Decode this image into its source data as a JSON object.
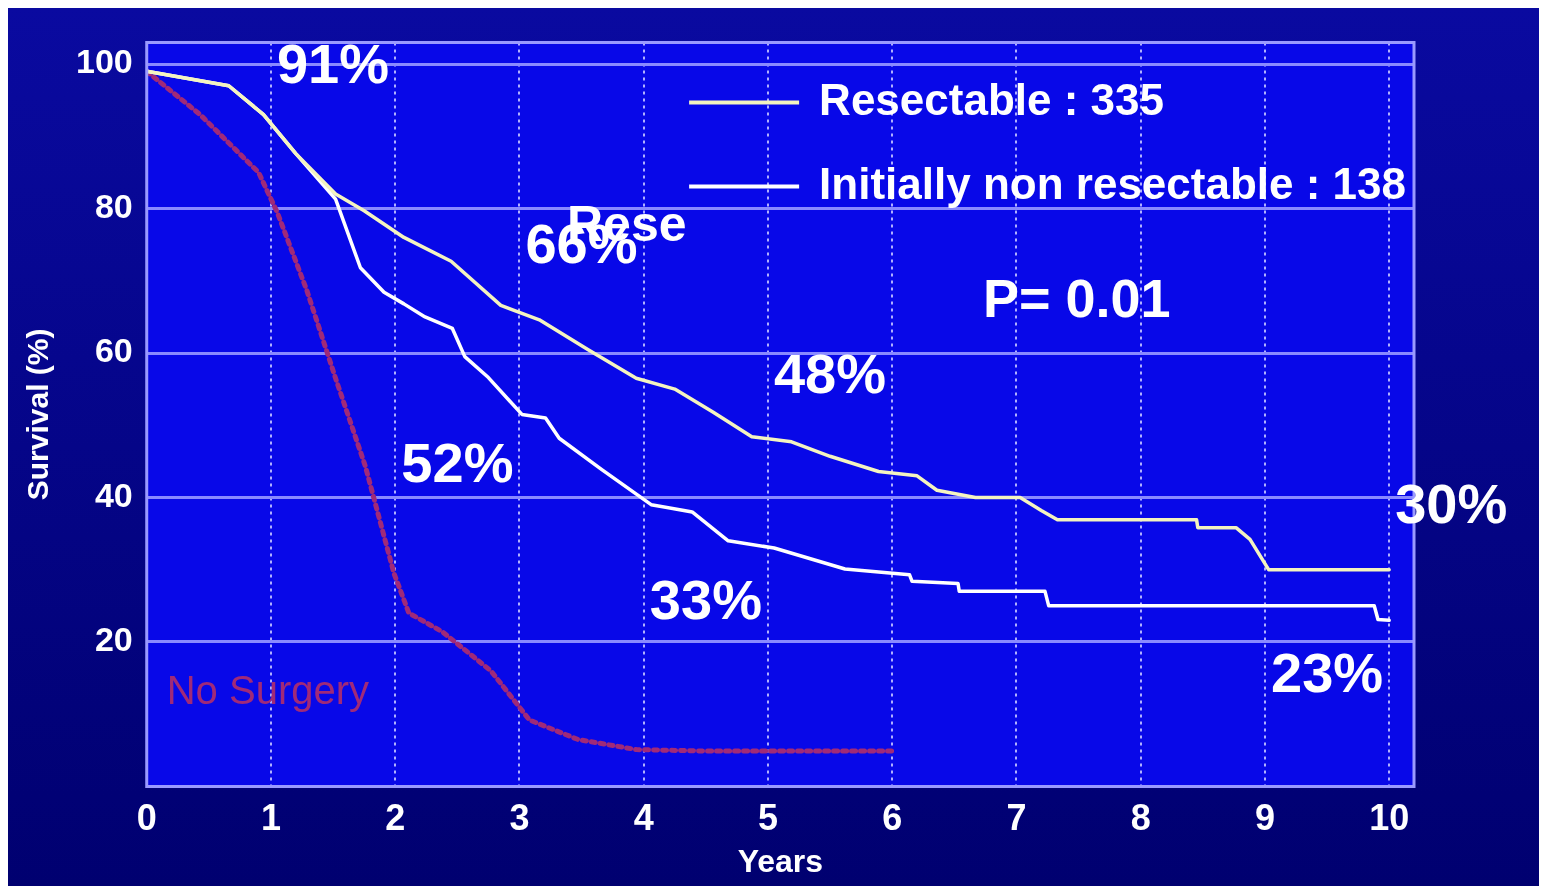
{
  "chart_data": {
    "type": "line",
    "xlabel": "Years",
    "ylabel": "Survival (%)",
    "xlim": [
      0,
      10.2
    ],
    "ylim": [
      0,
      103
    ],
    "xticks": [
      0,
      1,
      2,
      3,
      4,
      5,
      6,
      7,
      8,
      9,
      10
    ],
    "yticks": [
      20,
      40,
      60,
      80,
      100
    ],
    "grid": true,
    "legend": "top right",
    "marker": "none",
    "series": [
      {
        "name": "Resectable : 335",
        "color": "#f4f4c0",
        "line_style": "solid",
        "x": [
          0,
          0.66,
          0.94,
          1.2,
          1.52,
          1.75,
          2.07,
          2.45,
          2.85,
          3.16,
          3.55,
          3.94,
          4.25,
          4.56,
          4.87,
          5.19,
          5.5,
          5.89,
          6.2,
          6.36,
          6.67,
          7.03,
          7.2,
          7.33,
          8.45,
          8.46,
          8.77,
          8.88,
          9.03,
          10
        ],
        "values": [
          99,
          97,
          93,
          87.6,
          82,
          79.7,
          76,
          72.7,
          66.6,
          64.6,
          60.5,
          56.5,
          55,
          51.8,
          48.4,
          47.7,
          45.7,
          43.6,
          43,
          41,
          40,
          40,
          38.2,
          36.9,
          36.9,
          35.8,
          35.8,
          34.2,
          30,
          30
        ]
      },
      {
        "name": "Initially non resectable : 138",
        "color": "#ffffff",
        "line_style": "solid",
        "x": [
          0,
          0.66,
          0.94,
          1.2,
          1.52,
          1.72,
          1.91,
          2.07,
          2.24,
          2.46,
          2.56,
          2.75,
          3.02,
          3.21,
          3.32,
          3.66,
          4.06,
          4.39,
          4.68,
          5.05,
          5.62,
          6.14,
          6.16,
          6.53,
          6.54,
          7.23,
          7.26,
          9.88,
          9.91,
          10
        ],
        "values": [
          99,
          97,
          93,
          87.6,
          81.3,
          71.8,
          68.4,
          66.8,
          65,
          63.4,
          59.5,
          56.6,
          51.5,
          51,
          48.2,
          43.9,
          39,
          38,
          34,
          33,
          30.1,
          29.3,
          28.4,
          28.1,
          27,
          27,
          25,
          25,
          23.1,
          23
        ]
      },
      {
        "name": "No Surgery",
        "color": "#a02a78",
        "line_style": "dotted",
        "x": [
          0,
          0.43,
          0.9,
          1.05,
          1.29,
          1.52,
          1.76,
          1.99,
          2.11,
          2.38,
          2.77,
          3.08,
          3.47,
          3.94,
          4.48,
          6
        ],
        "values": [
          99,
          93,
          85,
          79.5,
          68.6,
          56.5,
          44.3,
          29.5,
          24,
          21.4,
          16,
          9.2,
          6.5,
          5.1,
          4.9,
          4.9
        ]
      }
    ],
    "annotations": [
      {
        "text": "91%",
        "x": 1,
        "y": 91
      },
      {
        "text": "66%",
        "x": 3,
        "y": 66
      },
      {
        "text": "48%",
        "x": 5,
        "y": 48
      },
      {
        "text": "30%",
        "x": 10,
        "y": 30
      },
      {
        "text": "52%",
        "x": 3,
        "y": 52
      },
      {
        "text": "33%",
        "x": 5,
        "y": 33
      },
      {
        "text": "23%",
        "x": 10,
        "y": 23
      },
      "Rese",
      "P= 0.01"
    ]
  }
}
